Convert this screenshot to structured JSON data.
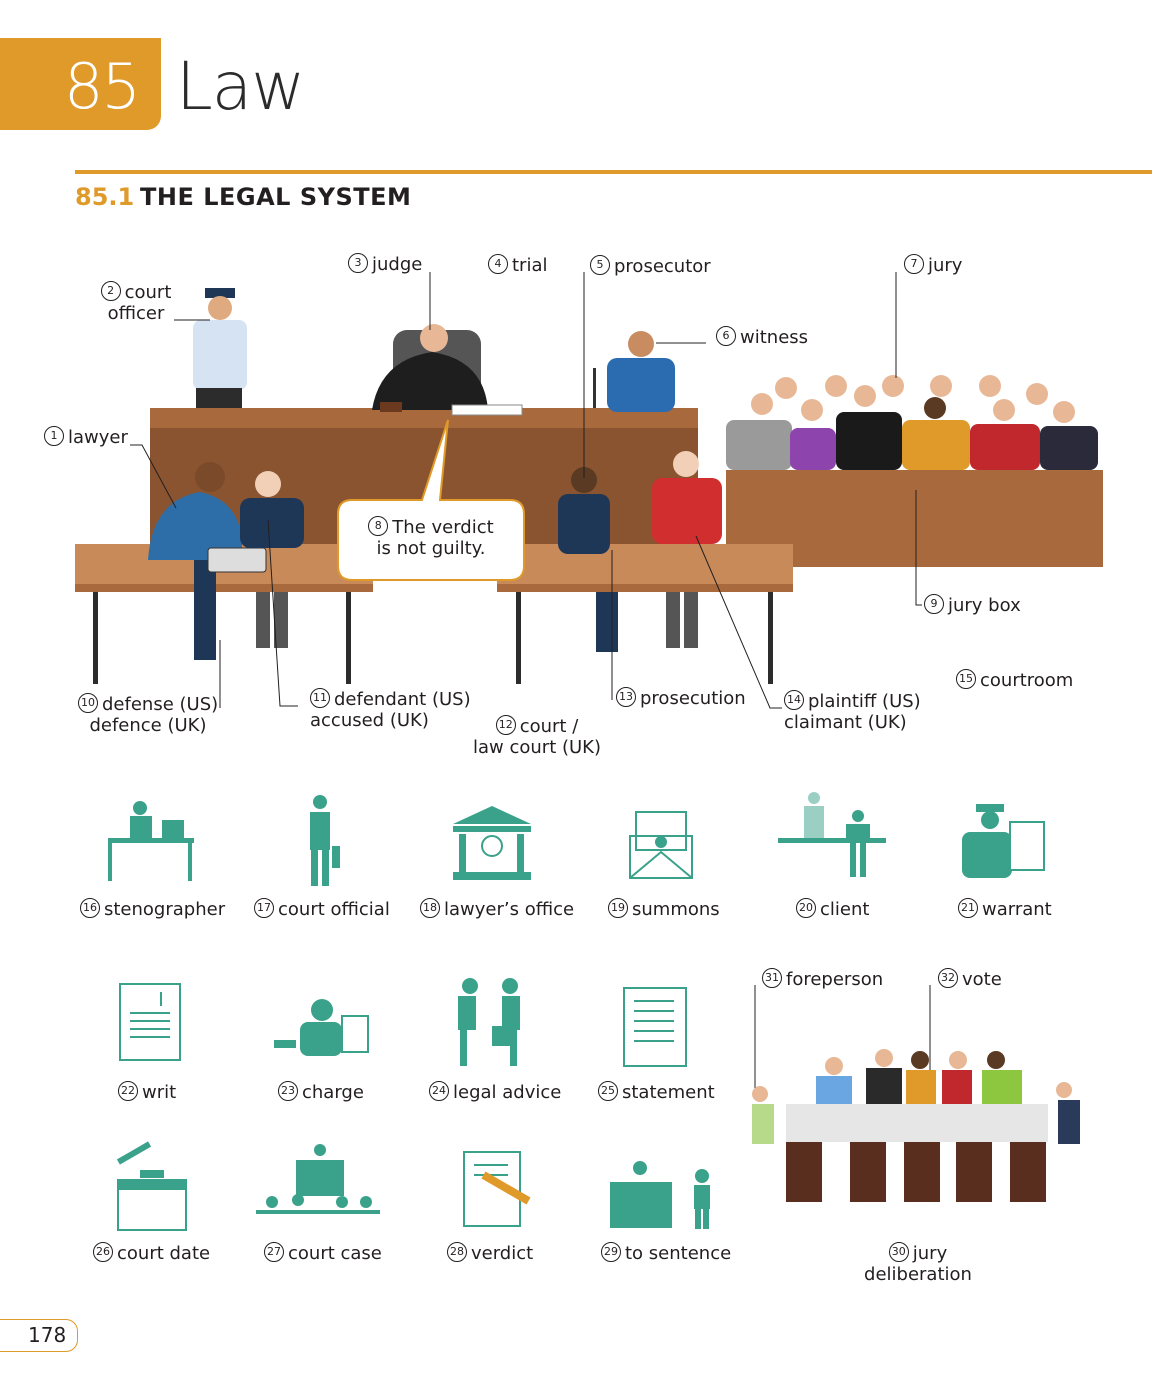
{
  "chapter": {
    "number": "85",
    "title": "Law"
  },
  "section": {
    "number": "85.1",
    "title": "THE LEGAL SYSTEM"
  },
  "scene_labels": [
    {
      "num": "1",
      "line1": "lawyer"
    },
    {
      "num": "2",
      "line1": "court",
      "line2": "officer"
    },
    {
      "num": "3",
      "line1": "judge"
    },
    {
      "num": "4",
      "line1": "trial"
    },
    {
      "num": "5",
      "line1": "prosecutor"
    },
    {
      "num": "6",
      "line1": "witness"
    },
    {
      "num": "7",
      "line1": "jury"
    },
    {
      "num": "8",
      "line1": "The verdict",
      "line2": "is not guilty."
    },
    {
      "num": "9",
      "line1": "jury box"
    },
    {
      "num": "10",
      "line1": "defense (US)",
      "line2": "defence (UK)"
    },
    {
      "num": "11",
      "line1": "defendant (US)",
      "line2": "accused (UK)"
    },
    {
      "num": "12",
      "line1": "court /",
      "line2": "law court (UK)"
    },
    {
      "num": "13",
      "line1": "prosecution"
    },
    {
      "num": "14",
      "line1": "plaintiff (US)",
      "line2": "claimant (UK)"
    },
    {
      "num": "15",
      "line1": "courtroom"
    }
  ],
  "icon_labels": [
    {
      "num": "16",
      "text": "stenographer",
      "icon": "stenographer-icon"
    },
    {
      "num": "17",
      "text": "court official",
      "icon": "court-official-icon"
    },
    {
      "num": "18",
      "text": "lawyer’s office",
      "icon": "courthouse-icon"
    },
    {
      "num": "19",
      "text": "summons",
      "icon": "envelope-icon"
    },
    {
      "num": "20",
      "text": "client",
      "icon": "client-meeting-icon"
    },
    {
      "num": "21",
      "text": "warrant",
      "icon": "police-warrant-icon"
    },
    {
      "num": "22",
      "text": "writ",
      "icon": "document-scales-icon"
    },
    {
      "num": "23",
      "text": "charge",
      "icon": "charge-icon"
    },
    {
      "num": "24",
      "text": "legal advice",
      "icon": "handshake-icon"
    },
    {
      "num": "25",
      "text": "statement",
      "icon": "statement-document-icon"
    },
    {
      "num": "26",
      "text": "court date",
      "icon": "gavel-calendar-icon"
    },
    {
      "num": "27",
      "text": "court case",
      "icon": "courtroom-icon"
    },
    {
      "num": "28",
      "text": "verdict",
      "icon": "gavel-document-icon"
    },
    {
      "num": "29",
      "text": "to sentence",
      "icon": "judge-defendant-icon"
    }
  ],
  "deliberation_labels": [
    {
      "num": "30",
      "line1": "jury",
      "line2": "deliberation"
    },
    {
      "num": "31",
      "line1": "foreperson"
    },
    {
      "num": "32",
      "line1": "vote"
    }
  ],
  "page_number": "178",
  "colors": {
    "accent": "#e09a2a",
    "icon_teal": "#3aa18a",
    "wood": "#a86a3c",
    "wood_light": "#c98a5a"
  }
}
